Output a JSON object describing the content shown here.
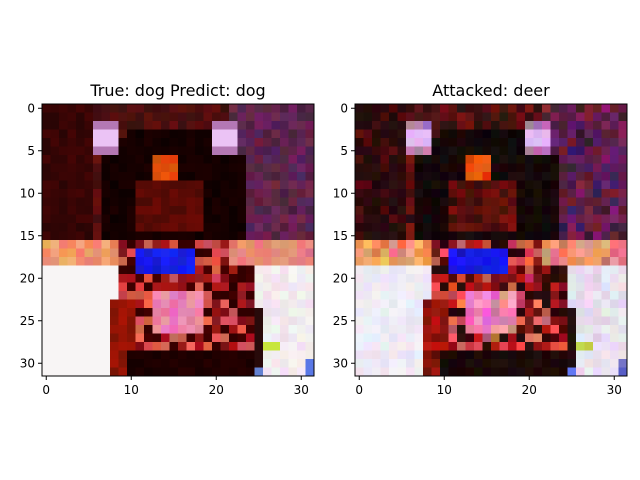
{
  "chart_data": [
    {
      "type": "heatmap",
      "title": "True: dog  Predict: dog",
      "xlabel": "",
      "ylabel": "",
      "xlim": [
        -0.5,
        31.5
      ],
      "ylim": [
        31.5,
        -0.5
      ],
      "xticks": [
        0,
        10,
        20,
        30
      ],
      "yticks": [
        0,
        5,
        10,
        15,
        20,
        25,
        30
      ],
      "image_size": [
        32,
        32
      ],
      "content": "CIFAR-10 style 32x32 RGB image of a dog (original)"
    },
    {
      "type": "heatmap",
      "title": "Attacked: deer",
      "xlabel": "",
      "ylabel": "",
      "xlim": [
        -0.5,
        31.5
      ],
      "ylim": [
        31.5,
        -0.5
      ],
      "xticks": [
        0,
        10,
        20,
        30
      ],
      "yticks": [
        0,
        5,
        10,
        15,
        20,
        25,
        30
      ],
      "image_size": [
        32,
        32
      ],
      "content": "Same image with adversarial perturbation"
    }
  ],
  "colors": {
    "background": "#ffffff",
    "axis": "#000000"
  }
}
